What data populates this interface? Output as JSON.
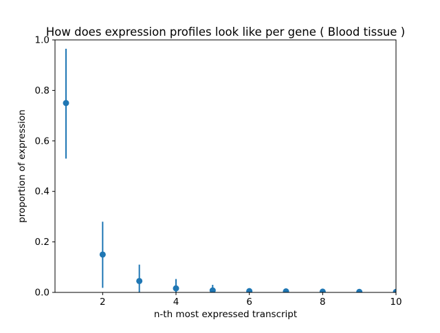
{
  "figure": {
    "background": "#ffffff",
    "spine_color": "#000000",
    "tick_color": "#000000"
  },
  "chart_data": {
    "type": "scatter",
    "title": "How does expression profiles look like per gene ( Blood tissue )",
    "xlabel": "n-th most expressed transcript",
    "ylabel": "proportion of expression",
    "x": [
      1,
      2,
      3,
      4,
      5,
      6,
      7,
      8,
      9,
      10
    ],
    "y": [
      0.75,
      0.15,
      0.045,
      0.016,
      0.008,
      0.005,
      0.004,
      0.003,
      0.002,
      0.002
    ],
    "err_bottom": [
      0.53,
      0.018,
      0.0,
      0.0,
      0.0,
      0.0,
      0.0,
      0.0,
      0.0,
      0.0
    ],
    "err_top": [
      0.965,
      0.28,
      0.11,
      0.053,
      0.03,
      0.013,
      0.009,
      0.006,
      0.005,
      0.005
    ],
    "xlim": [
      0.7,
      10.0
    ],
    "ylim": [
      0.0,
      1.0
    ],
    "xticks": [
      2,
      4,
      6,
      8,
      10
    ],
    "xtick_labels": [
      "2",
      "4",
      "6",
      "8",
      "10"
    ],
    "yticks": [
      0.0,
      0.2,
      0.4,
      0.6,
      0.8,
      1.0
    ],
    "ytick_labels": [
      "0.0",
      "0.2",
      "0.4",
      "0.6",
      "0.8",
      "1.0"
    ],
    "grid": false,
    "legend": false,
    "marker": "o",
    "marker_color": "#1f77b4",
    "errorbar_color": "#1f77b4",
    "error_caps": false
  }
}
